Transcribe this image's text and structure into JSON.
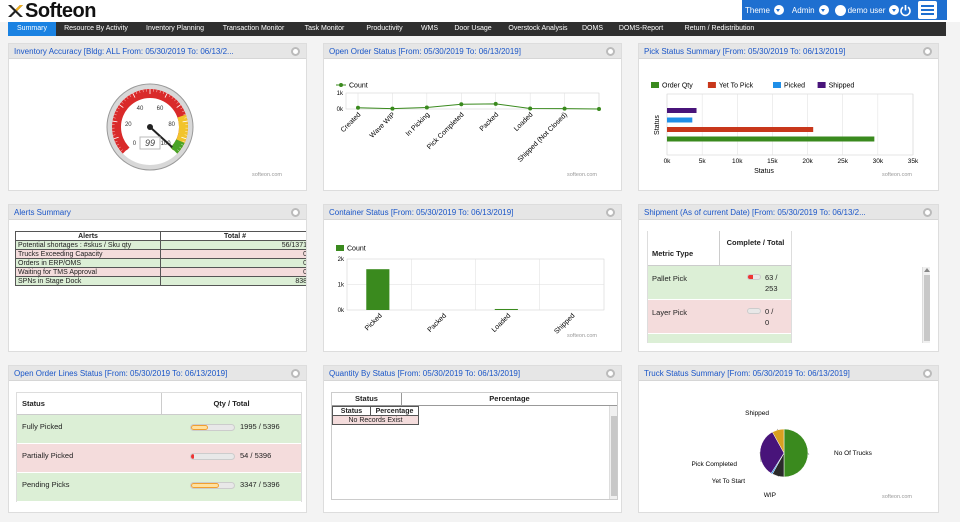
{
  "brand": {
    "name": "Softeon"
  },
  "topbar": {
    "theme": "Theme",
    "admin": "Admin",
    "user": "demo user"
  },
  "nav": [
    {
      "label": "Summary",
      "active": true
    },
    {
      "label": "Resource By Activity"
    },
    {
      "label": "Inventory Planning"
    },
    {
      "label": "Transaction Monitor"
    },
    {
      "label": "Task Monitor"
    },
    {
      "label": "Productivity"
    },
    {
      "label": "WMS"
    },
    {
      "label": "Door Usage"
    },
    {
      "label": "Overstock Analysis"
    },
    {
      "label": "DOMS"
    },
    {
      "label": "DOMS-Report"
    },
    {
      "label": "Return / Redistribution"
    }
  ],
  "watermark": "softeon.com",
  "inventory": {
    "title": "Inventory Accuracy [Bldg: ALL From: 05/30/2019 To: 06/13/2...",
    "gauge_value": "99",
    "value": 99,
    "ticks": [
      "0",
      "20",
      "40",
      "60",
      "80",
      "100"
    ]
  },
  "open_order": {
    "title": "Open Order Status [From: 05/30/2019 To: 06/13/2019]",
    "chart_data": {
      "type": "line",
      "series": [
        {
          "name": "Count",
          "values": [
            80,
            20,
            90,
            300,
            320,
            30,
            20,
            0
          ]
        }
      ],
      "categories": [
        "Created",
        "Wave WIP",
        "In Picking",
        "Pick Completed",
        "Packed",
        "Loaded",
        "Shipped (Not Closed)",
        ""
      ],
      "y_ticks": [
        "1k",
        "0k"
      ],
      "ylim": [
        0,
        1000
      ]
    }
  },
  "pick_status": {
    "title": "Pick Status Summary [From: 05/30/2019 To: 06/13/2019]",
    "chart_data": {
      "type": "bar",
      "orientation": "horizontal",
      "series": [
        {
          "name": "Order Qty",
          "color": "#3a8a1e",
          "value": 29500
        },
        {
          "name": "Yet To Pick",
          "color": "#c8371b",
          "value": 20800
        },
        {
          "name": "Picked",
          "color": "#1f8fe8",
          "value": 3600
        },
        {
          "name": "Shipped",
          "color": "#48147a",
          "value": 4200
        }
      ],
      "x_ticks": [
        "0k",
        "5k",
        "10k",
        "15k",
        "20k",
        "25k",
        "30k",
        "35k"
      ],
      "xlim": [
        0,
        35000
      ],
      "xlabel": "Status",
      "ylabel": "Status"
    }
  },
  "alerts": {
    "title": "Alerts Summary",
    "headers": [
      "Alerts",
      "Total #"
    ],
    "rows": [
      {
        "name": "Potential shortages : #skus / Sku qty",
        "value": "56/1371",
        "cls": "g"
      },
      {
        "name": "Trucks Exceeding Capacity",
        "value": "0",
        "cls": "r"
      },
      {
        "name": "Orders in ERP/OMS",
        "value": "0",
        "cls": "g"
      },
      {
        "name": "Waiting for TMS Approval",
        "value": "0",
        "cls": "r"
      },
      {
        "name": "SPNs in Stage Dock",
        "value": "838",
        "cls": "g"
      }
    ]
  },
  "container": {
    "title": "Container Status [From: 05/30/2019 To: 06/13/2019]",
    "chart_data": {
      "type": "bar",
      "series": [
        {
          "name": "Count",
          "color": "#3a8a1e",
          "values": [
            1600,
            0,
            40,
            0
          ]
        }
      ],
      "categories": [
        "Picked",
        "Packed",
        "Loaded",
        "Shipped"
      ],
      "y_ticks": [
        "2k",
        "1k",
        "0k"
      ],
      "ylim": [
        0,
        2000
      ]
    }
  },
  "shipment": {
    "title": "Shipment (As of current Date) [From: 05/30/2019 To: 06/13/2...",
    "headers": [
      "Metric Type",
      "Complete / Total"
    ],
    "rows": [
      {
        "name": "Pallet Pick",
        "c": "63 /",
        "t": "253",
        "frac": 0.25,
        "cls": "g"
      },
      {
        "name": "Layer Pick",
        "c": "0 /",
        "t": "0",
        "frac": 0,
        "cls": "r"
      }
    ]
  },
  "lines": {
    "title": "Open Order Lines Status [From: 05/30/2019 To: 06/13/2019]",
    "headers": [
      "Status",
      "Qty / Total"
    ],
    "rows": [
      {
        "name": "Fully Picked",
        "value": "1995 / 5396",
        "frac": 0.37,
        "cls": "g"
      },
      {
        "name": "Partially Picked",
        "value": "54 / 5396",
        "frac": 0.01,
        "cls": "r"
      },
      {
        "name": "Pending Picks",
        "value": "3347 / 5396",
        "frac": 0.62,
        "cls": "g"
      }
    ]
  },
  "qty": {
    "title": "Quantity By Status [From: 05/30/2019 To: 06/13/2019]",
    "h1": "Status",
    "h2": "Percentage",
    "s1": "Status",
    "s2": "Percentage",
    "empty": "No Records Exist"
  },
  "truck": {
    "title": "Truck Status Summary [From: 05/30/2019 To: 06/13/2019]",
    "chart_data": {
      "type": "pie",
      "slices": [
        {
          "name": "No Of Trucks",
          "value": 50,
          "color": "#3a8a1e"
        },
        {
          "name": "WIP",
          "value": 8,
          "color": "#2a2a2a"
        },
        {
          "name": "Yet To Start",
          "value": 1,
          "color": "#1f8fe8"
        },
        {
          "name": "Pick Completed",
          "value": 33,
          "color": "#48147a"
        },
        {
          "name": "Shipped",
          "value": 8,
          "color": "#d8a020"
        }
      ]
    }
  }
}
